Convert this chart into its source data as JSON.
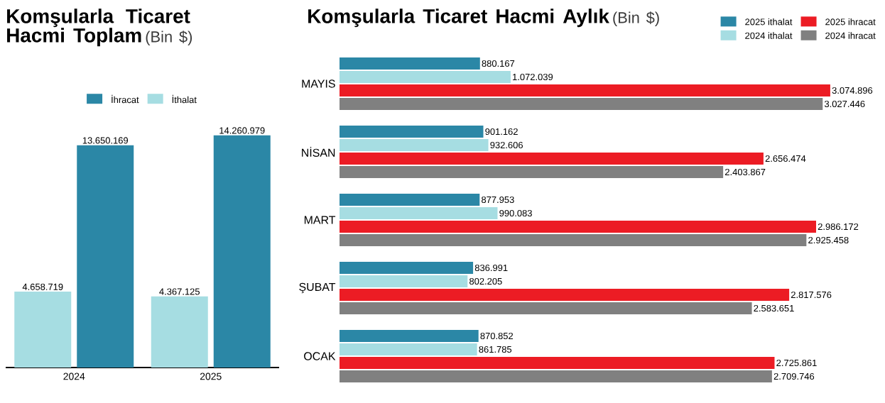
{
  "chart_data": [
    {
      "type": "bar",
      "title": "Komşularla Ticaret Hacmi Toplam",
      "subtitle": "(Bin $)",
      "categories": [
        "2024",
        "2025"
      ],
      "legend": "top",
      "tick_labels": "x",
      "series": [
        {
          "name": "İthalat",
          "color": "#a6dde2",
          "values": [
            4658719,
            4367125
          ],
          "value_labels": [
            "4.658.719",
            "4.367.125"
          ]
        },
        {
          "name": "İhracat",
          "color": "#2b87a6",
          "values": [
            13650169,
            14260979
          ],
          "value_labels": [
            "13.650.169",
            "14.260.979"
          ]
        }
      ]
    },
    {
      "type": "bar",
      "orientation": "horizontal",
      "title": "Komşularla Ticaret Hacmi Aylık",
      "subtitle": "(Bin $)",
      "categories": [
        "MAYIS",
        "NİSAN",
        "MART",
        "ŞUBAT",
        "OCAK"
      ],
      "legend": "top right",
      "tick_labels": "y",
      "series": [
        {
          "name": "2025 ithalat",
          "color": "#2b87a6",
          "values": [
            880167,
            901162,
            877953,
            836991,
            870852
          ],
          "value_labels": [
            "880.167",
            "901.162",
            "877.953",
            "836.991",
            "870.852"
          ]
        },
        {
          "name": "2024 ithalat",
          "color": "#a6dde2",
          "values": [
            1072039,
            932606,
            990083,
            802205,
            861785
          ],
          "value_labels": [
            "1.072.039",
            "932.606",
            "990.083",
            "802.205",
            "861.785"
          ]
        },
        {
          "name": "2025 ihracat",
          "color": "#ec1c24",
          "values": [
            3074896,
            2656474,
            2986172,
            2817576,
            2725861
          ],
          "value_labels": [
            "3.074.896",
            "2.656.474",
            "2.986.172",
            "2.817.576",
            "2.725.861"
          ]
        },
        {
          "name": "2024 ihracat",
          "color": "#808080",
          "values": [
            3027446,
            2403867,
            2925458,
            2583651,
            2709746
          ],
          "value_labels": [
            "3.027.446",
            "2.403.867",
            "2.925.458",
            "2.583.651",
            "2.709.746"
          ]
        }
      ]
    }
  ]
}
